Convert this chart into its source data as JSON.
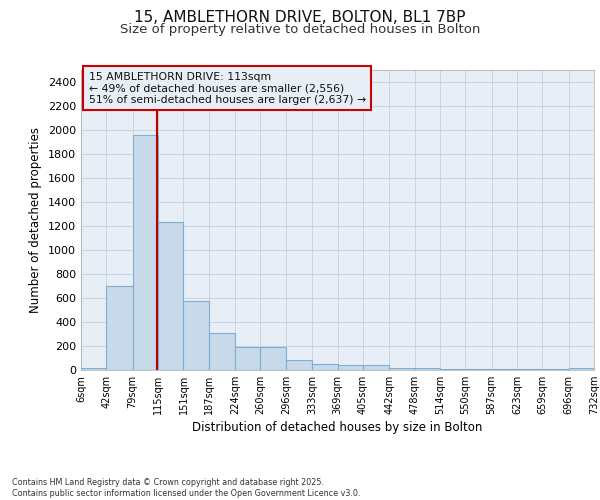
{
  "title_line1": "15, AMBLETHORN DRIVE, BOLTON, BL1 7BP",
  "title_line2": "Size of property relative to detached houses in Bolton",
  "xlabel": "Distribution of detached houses by size in Bolton",
  "ylabel": "Number of detached properties",
  "annotation_title": "15 AMBLETHORN DRIVE: 113sqm",
  "annotation_line2": "← 49% of detached houses are smaller (2,556)",
  "annotation_line3": "51% of semi-detached houses are larger (2,637) →",
  "property_size_sqm": 113,
  "bin_edges": [
    6,
    42,
    79,
    115,
    151,
    187,
    224,
    260,
    296,
    333,
    369,
    405,
    442,
    478,
    514,
    550,
    587,
    623,
    659,
    696,
    732
  ],
  "bar_values": [
    15,
    700,
    1960,
    1230,
    575,
    305,
    195,
    195,
    80,
    48,
    38,
    38,
    20,
    20,
    12,
    5,
    5,
    5,
    5,
    15
  ],
  "bar_color": "#c8d9ea",
  "bar_edge_color": "#7dafd4",
  "grid_color": "#c8d4e0",
  "plot_bg_color": "#e8eef5",
  "fig_bg_color": "#ffffff",
  "vline_color": "#c00000",
  "annotation_box_color": "#cc0000",
  "annotation_bg": "#e8eef5",
  "ylim": [
    0,
    2500
  ],
  "yticks": [
    0,
    200,
    400,
    600,
    800,
    1000,
    1200,
    1400,
    1600,
    1800,
    2000,
    2200,
    2400
  ],
  "footnote": "Contains HM Land Registry data © Crown copyright and database right 2025.\nContains public sector information licensed under the Open Government Licence v3.0."
}
